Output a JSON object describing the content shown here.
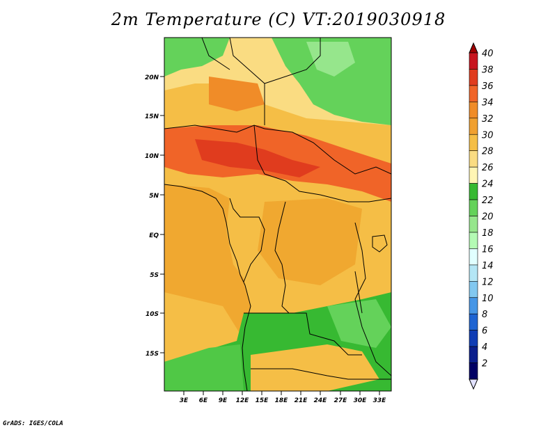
{
  "title": "2m Temperature (C) VT:2019030918",
  "credit": "GrADS: IGES/COLA",
  "map": {
    "lat_ticks": [
      "20N",
      "15N",
      "10N",
      "5N",
      "EQ",
      "5S",
      "10S",
      "15S"
    ],
    "lon_ticks": [
      "3E",
      "6E",
      "9E",
      "12E",
      "15E",
      "18E",
      "21E",
      "24E",
      "27E",
      "30E",
      "33E"
    ]
  },
  "colorbar": {
    "labels": [
      "40",
      "38",
      "36",
      "34",
      "32",
      "30",
      "28",
      "26",
      "24",
      "22",
      "20",
      "18",
      "16",
      "14",
      "12",
      "10",
      "8",
      "6",
      "4",
      "2"
    ],
    "colors": [
      "#a00000",
      "#c8141e",
      "#e03c1e",
      "#f06428",
      "#f08c28",
      "#f0a030",
      "#f5be46",
      "#fadc82",
      "#fff5b4",
      "#37b932",
      "#64d25a",
      "#96e68c",
      "#b4fab4",
      "#e1ffff",
      "#b4e6f5",
      "#82c8f0",
      "#4696e6",
      "#1e64d2",
      "#0f3cb4",
      "#0a1e8c",
      "#000064",
      "#e1e1ff"
    ]
  },
  "colors": {
    "ocean": "#f0a830",
    "hot": "#e04a1e",
    "warm": "#f5be46",
    "green": "#50c846"
  }
}
